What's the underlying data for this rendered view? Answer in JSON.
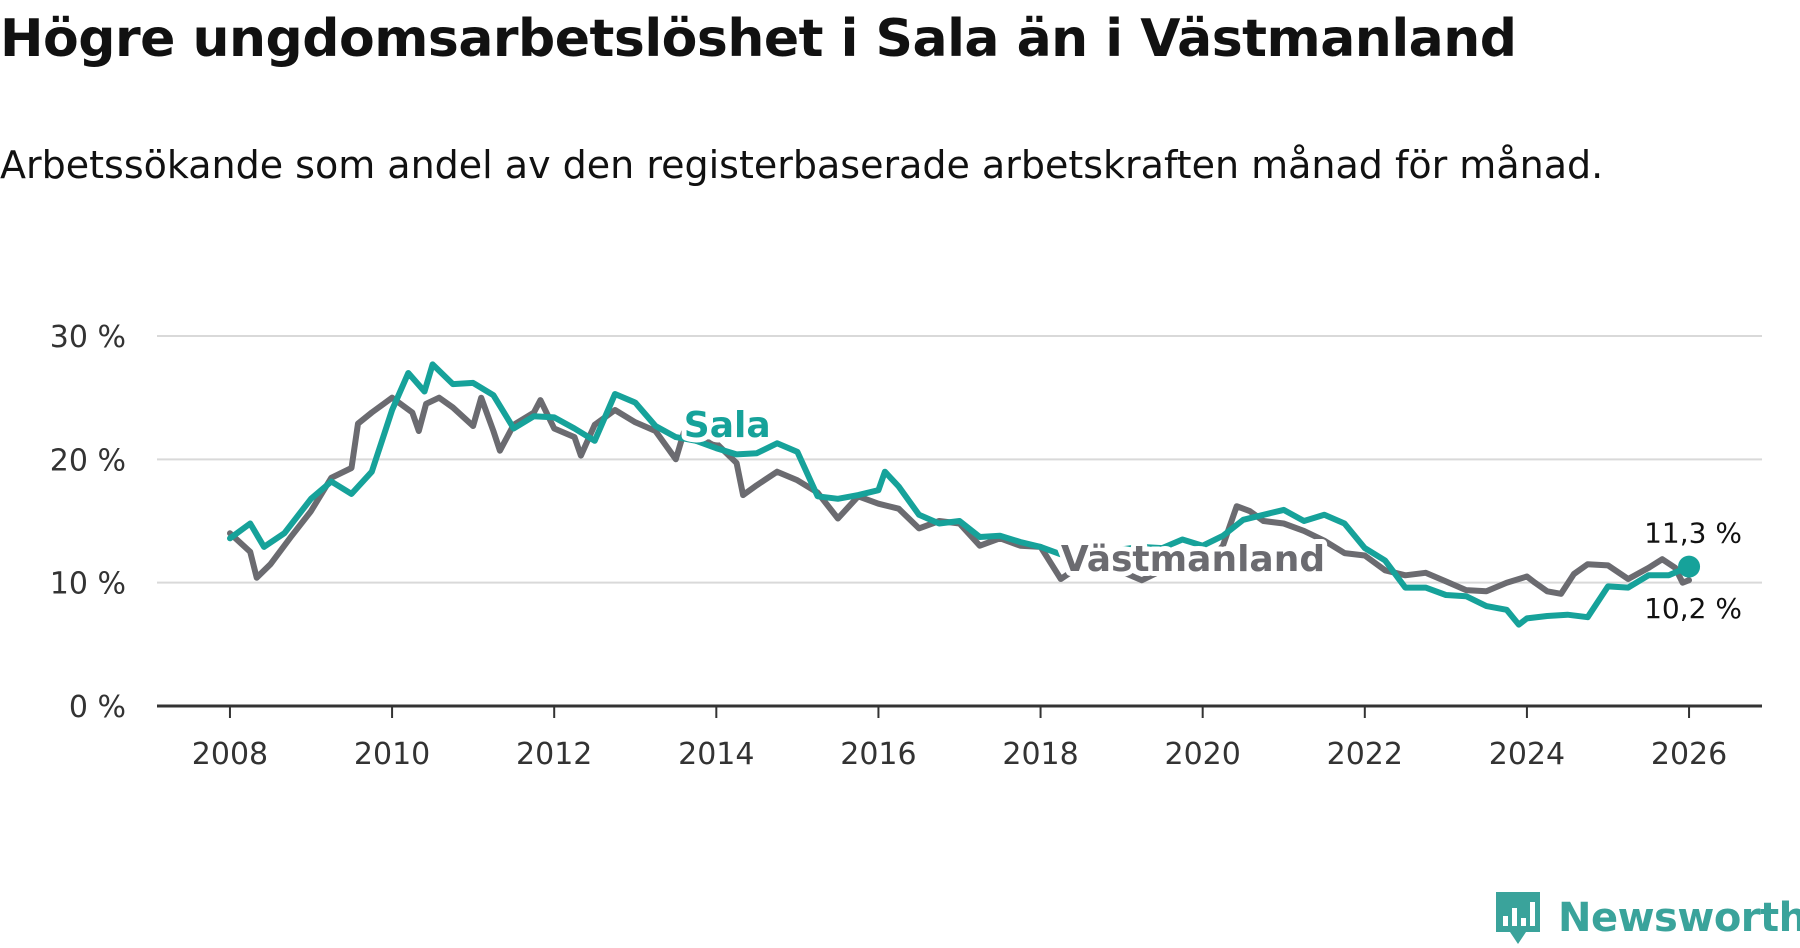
{
  "header": {
    "title": "Högre ungdomsarbetslöshet i Sala än i Västmanland",
    "subtitle": "Arbetssökande som andel av den registerbaserade arbetskraften månad för månad."
  },
  "brand": {
    "name": "Newsworthy"
  },
  "colors": {
    "sala": "#16a29a",
    "vastmanland": "#6b6b70",
    "grid": "#d9d9d9",
    "axis": "#333333",
    "brand": "#3aa39b"
  },
  "chart_data": {
    "type": "line",
    "title": "Högre ungdomsarbetslöshet i Sala än i Västmanland",
    "subtitle": "Arbetssökande som andel av den registerbaserade arbetskraften månad för månad.",
    "xlabel": "",
    "ylabel": "",
    "xlim": [
      2007.1,
      2026.9
    ],
    "ylim": [
      0,
      30
    ],
    "x_ticks": [
      2008,
      2010,
      2012,
      2014,
      2016,
      2018,
      2020,
      2022,
      2024,
      2026
    ],
    "x_tick_labels": [
      "2008",
      "2010",
      "2012",
      "2014",
      "2016",
      "2018",
      "2020",
      "2022",
      "2024",
      "2026"
    ],
    "y_ticks": [
      0,
      10,
      20,
      30
    ],
    "y_tick_labels": [
      "0 %",
      "10 %",
      "20 %",
      "30 %"
    ],
    "grid": true,
    "series": [
      {
        "name": "Sala",
        "label": "Sala",
        "color": "#16a29a",
        "end_label": "11,3 %",
        "points": [
          [
            2008.0,
            13.6
          ],
          [
            2008.25,
            14.8
          ],
          [
            2008.42,
            12.9
          ],
          [
            2008.67,
            14.0
          ],
          [
            2009.0,
            16.8
          ],
          [
            2009.25,
            18.2
          ],
          [
            2009.5,
            17.2
          ],
          [
            2009.75,
            19.0
          ],
          [
            2010.0,
            24.0
          ],
          [
            2010.2,
            27.0
          ],
          [
            2010.4,
            25.5
          ],
          [
            2010.5,
            27.7
          ],
          [
            2010.75,
            26.1
          ],
          [
            2011.0,
            26.2
          ],
          [
            2011.25,
            25.2
          ],
          [
            2011.5,
            22.5
          ],
          [
            2011.75,
            23.5
          ],
          [
            2012.0,
            23.4
          ],
          [
            2012.25,
            22.5
          ],
          [
            2012.5,
            21.5
          ],
          [
            2012.75,
            25.3
          ],
          [
            2013.0,
            24.6
          ],
          [
            2013.25,
            22.7
          ],
          [
            2013.5,
            21.8
          ],
          [
            2013.75,
            21.5
          ],
          [
            2014.0,
            20.9
          ],
          [
            2014.25,
            20.4
          ],
          [
            2014.5,
            20.5
          ],
          [
            2014.75,
            21.3
          ],
          [
            2015.0,
            20.6
          ],
          [
            2015.25,
            17.0
          ],
          [
            2015.5,
            16.8
          ],
          [
            2015.75,
            17.1
          ],
          [
            2016.0,
            17.5
          ],
          [
            2016.08,
            19.0
          ],
          [
            2016.25,
            17.8
          ],
          [
            2016.5,
            15.5
          ],
          [
            2016.75,
            14.8
          ],
          [
            2017.0,
            15.0
          ],
          [
            2017.25,
            13.7
          ],
          [
            2017.5,
            13.8
          ],
          [
            2017.75,
            13.3
          ],
          [
            2018.0,
            12.9
          ],
          [
            2018.25,
            12.3
          ],
          [
            2018.5,
            11.9
          ],
          [
            2018.75,
            12.1
          ],
          [
            2019.0,
            12.7
          ],
          [
            2019.25,
            12.9
          ],
          [
            2019.5,
            12.8
          ],
          [
            2019.75,
            13.5
          ],
          [
            2020.0,
            13.0
          ],
          [
            2020.25,
            13.8
          ],
          [
            2020.5,
            15.1
          ],
          [
            2020.75,
            15.5
          ],
          [
            2021.0,
            15.9
          ],
          [
            2021.25,
            15.0
          ],
          [
            2021.5,
            15.5
          ],
          [
            2021.75,
            14.8
          ],
          [
            2022.0,
            12.8
          ],
          [
            2022.25,
            11.8
          ],
          [
            2022.5,
            9.6
          ],
          [
            2022.75,
            9.6
          ],
          [
            2023.0,
            9.0
          ],
          [
            2023.25,
            8.9
          ],
          [
            2023.5,
            8.1
          ],
          [
            2023.75,
            7.8
          ],
          [
            2023.9,
            6.6
          ],
          [
            2024.0,
            7.1
          ],
          [
            2024.25,
            7.3
          ],
          [
            2024.5,
            7.4
          ],
          [
            2024.75,
            7.2
          ],
          [
            2025.0,
            9.7
          ],
          [
            2025.25,
            9.6
          ],
          [
            2025.5,
            10.6
          ],
          [
            2025.75,
            10.6
          ],
          [
            2026.0,
            11.3
          ]
        ]
      },
      {
        "name": "Västmanland",
        "label": "Västmanland",
        "color": "#6b6b70",
        "end_label": "10,2 %",
        "points": [
          [
            2008.0,
            14.0
          ],
          [
            2008.25,
            12.5
          ],
          [
            2008.33,
            10.4
          ],
          [
            2008.5,
            11.5
          ],
          [
            2008.75,
            13.7
          ],
          [
            2009.0,
            15.8
          ],
          [
            2009.25,
            18.5
          ],
          [
            2009.5,
            19.3
          ],
          [
            2009.58,
            22.9
          ],
          [
            2009.75,
            23.8
          ],
          [
            2010.0,
            25.0
          ],
          [
            2010.25,
            23.8
          ],
          [
            2010.33,
            22.3
          ],
          [
            2010.42,
            24.5
          ],
          [
            2010.58,
            25.0
          ],
          [
            2010.75,
            24.2
          ],
          [
            2011.0,
            22.7
          ],
          [
            2011.1,
            25.0
          ],
          [
            2011.25,
            22.3
          ],
          [
            2011.33,
            20.7
          ],
          [
            2011.5,
            22.8
          ],
          [
            2011.75,
            23.8
          ],
          [
            2011.83,
            24.8
          ],
          [
            2012.0,
            22.5
          ],
          [
            2012.25,
            21.8
          ],
          [
            2012.33,
            20.3
          ],
          [
            2012.5,
            22.8
          ],
          [
            2012.75,
            24.0
          ],
          [
            2013.0,
            23.0
          ],
          [
            2013.25,
            22.3
          ],
          [
            2013.5,
            20.0
          ],
          [
            2013.6,
            22.2
          ],
          [
            2013.75,
            21.5
          ],
          [
            2014.0,
            21.3
          ],
          [
            2014.25,
            19.7
          ],
          [
            2014.33,
            17.1
          ],
          [
            2014.5,
            17.9
          ],
          [
            2014.75,
            19.0
          ],
          [
            2015.0,
            18.3
          ],
          [
            2015.25,
            17.3
          ],
          [
            2015.5,
            15.2
          ],
          [
            2015.75,
            17.0
          ],
          [
            2016.0,
            16.4
          ],
          [
            2016.25,
            16.0
          ],
          [
            2016.5,
            14.4
          ],
          [
            2016.75,
            15.0
          ],
          [
            2017.0,
            14.8
          ],
          [
            2017.25,
            13.0
          ],
          [
            2017.5,
            13.6
          ],
          [
            2017.75,
            13.0
          ],
          [
            2018.0,
            12.9
          ],
          [
            2018.25,
            10.3
          ],
          [
            2018.5,
            11.4
          ],
          [
            2018.75,
            11.2
          ],
          [
            2019.0,
            10.9
          ],
          [
            2019.25,
            10.2
          ],
          [
            2019.5,
            11.0
          ],
          [
            2019.75,
            11.2
          ],
          [
            2020.0,
            11.1
          ],
          [
            2020.25,
            13.0
          ],
          [
            2020.42,
            16.2
          ],
          [
            2020.58,
            15.8
          ],
          [
            2020.75,
            15.0
          ],
          [
            2021.0,
            14.8
          ],
          [
            2021.25,
            14.2
          ],
          [
            2021.5,
            13.4
          ],
          [
            2021.75,
            12.4
          ],
          [
            2022.0,
            12.2
          ],
          [
            2022.25,
            11.0
          ],
          [
            2022.5,
            10.6
          ],
          [
            2022.75,
            10.8
          ],
          [
            2023.0,
            10.1
          ],
          [
            2023.25,
            9.4
          ],
          [
            2023.5,
            9.3
          ],
          [
            2023.75,
            10.0
          ],
          [
            2024.0,
            10.5
          ],
          [
            2024.1,
            10.0
          ],
          [
            2024.25,
            9.3
          ],
          [
            2024.42,
            9.1
          ],
          [
            2024.58,
            10.7
          ],
          [
            2024.75,
            11.5
          ],
          [
            2025.0,
            11.4
          ],
          [
            2025.25,
            10.3
          ],
          [
            2025.5,
            11.2
          ],
          [
            2025.67,
            11.9
          ],
          [
            2025.83,
            11.2
          ],
          [
            2025.92,
            10.0
          ],
          [
            2026.0,
            10.2
          ]
        ]
      }
    ]
  }
}
